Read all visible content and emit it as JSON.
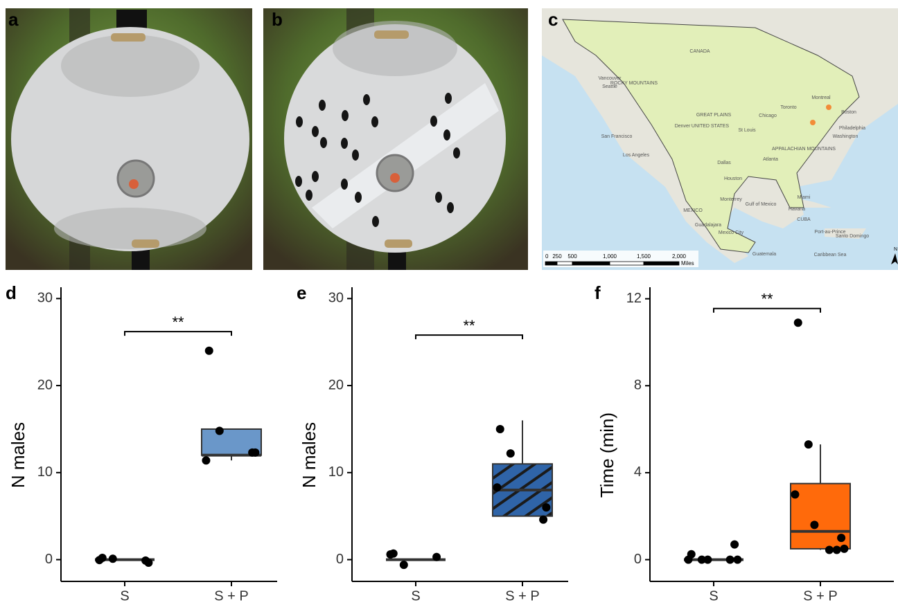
{
  "panels": {
    "a": "a",
    "b": "b",
    "c": "c"
  },
  "map": {
    "labels": [
      "CANADA",
      "UNITED STATES",
      "MEXICO",
      "ROCKY MOUNTAINS",
      "GREAT PLAINS",
      "APPALACHIAN MOUNTAINS",
      "Vancouver",
      "Seattle",
      "San Francisco",
      "Los Angeles",
      "Denver",
      "Chicago",
      "St Louis",
      "Dallas",
      "Houston",
      "Atlanta",
      "Toronto",
      "Montreal",
      "Boston",
      "Philadelphia",
      "Washington",
      "Miami",
      "Havana",
      "CUBA",
      "Port-au-Prince",
      "Santo Domingo",
      "Monterrey",
      "Guadalajara",
      "Mexico City",
      "Guatemala",
      "Gulf of Mexico",
      "Caribbean Sea"
    ],
    "scale_labels": [
      "0",
      "250",
      "500",
      "1,000",
      "1,500",
      "2,000"
    ],
    "scale_unit": "Miles",
    "north": "N"
  },
  "chart_data": [
    {
      "type": "box",
      "label": "d",
      "ylabel": "N males",
      "categories": [
        "S",
        "S + P"
      ],
      "ylim": [
        -2.5,
        31.3
      ],
      "yticks": [
        0,
        10,
        20,
        30
      ],
      "color": "#6a97c9",
      "hatch": false,
      "boxes": [
        {
          "min": 0,
          "q1": 0,
          "median": 0,
          "q3": 0,
          "max": 0
        },
        {
          "min": 11.4,
          "q1": 12,
          "median": 12,
          "q3": 15,
          "max": 15
        }
      ],
      "points": [
        [
          0.2,
          0.1,
          -0.05,
          -0.1,
          -0.35
        ],
        [
          24,
          14.8,
          11.4,
          12.3,
          12.3
        ]
      ],
      "significance": "**",
      "significance_y": 26.2
    },
    {
      "type": "box",
      "label": "e",
      "ylabel": "N males",
      "categories": [
        "S",
        "S + P"
      ],
      "ylim": [
        -2.5,
        31.3
      ],
      "yticks": [
        0,
        10,
        20,
        30
      ],
      "color": "#2f64a8",
      "hatch": true,
      "boxes": [
        {
          "min": 0,
          "q1": 0,
          "median": 0,
          "q3": 0,
          "max": 0
        },
        {
          "min": 5,
          "q1": 5,
          "median": 8,
          "q3": 11,
          "max": 16
        }
      ],
      "points": [
        [
          0.7,
          -0.6,
          0.6,
          0.3
        ],
        [
          15,
          12.2,
          8.3,
          4.6,
          6
        ]
      ],
      "significance": "**",
      "significance_y": 25.8
    },
    {
      "type": "box",
      "label": "f",
      "ylabel": "Time (min)",
      "categories": [
        "S",
        "S + P"
      ],
      "ylim": [
        -1,
        12.53
      ],
      "yticks": [
        0,
        4,
        8,
        12
      ],
      "color": "#ff6a0b",
      "hatch": false,
      "boxes": [
        {
          "min": 0,
          "q1": 0,
          "median": 0,
          "q3": 0,
          "max": 0
        },
        {
          "min": 0.45,
          "q1": 0.5,
          "median": 1.3,
          "q3": 3.5,
          "max": 5.3
        }
      ],
      "points": [
        [
          0.25,
          0,
          0,
          0.7,
          0,
          0,
          0
        ],
        [
          10.9,
          5.3,
          3,
          1,
          0.5,
          0.45,
          1.6,
          0.45
        ]
      ],
      "significance": "**",
      "significance_y": 11.55
    }
  ]
}
